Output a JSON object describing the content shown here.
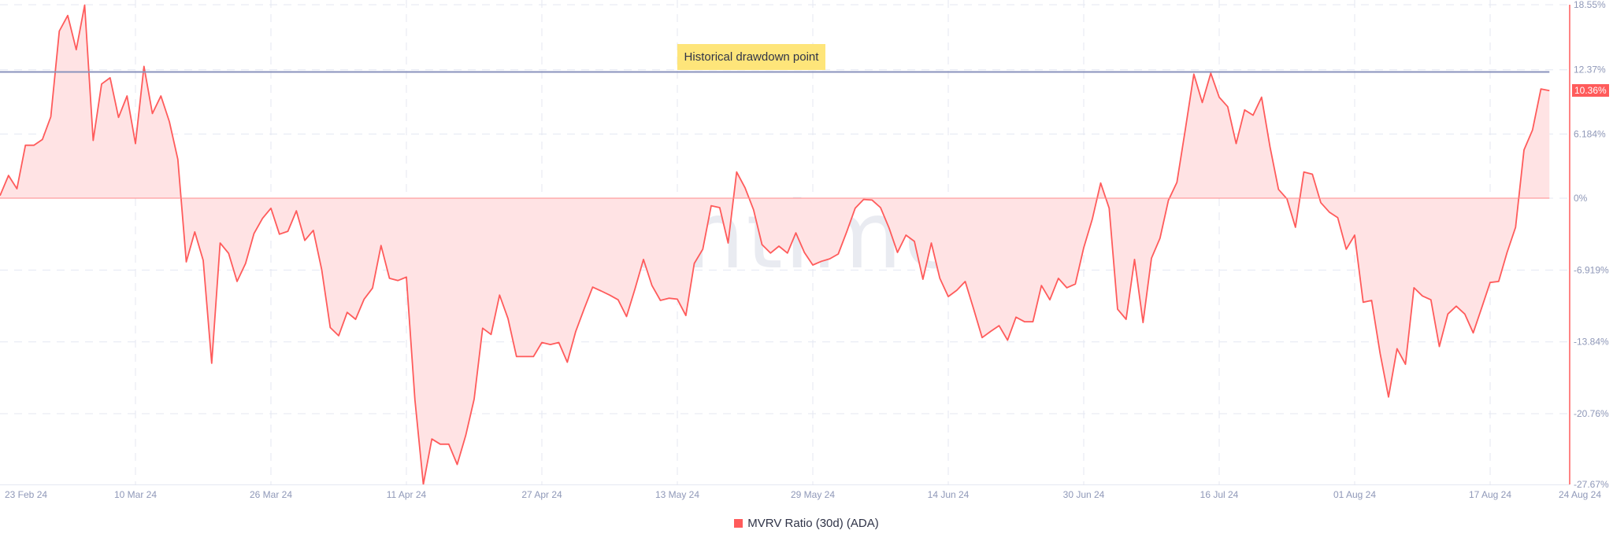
{
  "chart_data": {
    "type": "area",
    "title": "",
    "xlabel": "",
    "ylabel": "",
    "x_start": "2024-02-23",
    "x_end": "2024-08-24",
    "x_interval": "1 day",
    "x_tick_labels": [
      "23 Feb 24",
      "10 Mar 24",
      "26 Mar 24",
      "11 Apr 24",
      "27 Apr 24",
      "13 May 24",
      "29 May 24",
      "14 Jun 24",
      "30 Jun 24",
      "16 Jul 24",
      "01 Aug 24",
      "17 Aug 24",
      "24 Aug 24"
    ],
    "y_tick_labels": [
      "18.55%",
      "12.37%",
      "6.184%",
      "0%",
      "-6.919%",
      "-13.84%",
      "-20.76%",
      "-27.67%"
    ],
    "y_ticks": [
      18.55,
      12.37,
      6.184,
      0,
      -6.919,
      -13.84,
      -20.76,
      -27.67
    ],
    "ylim": [
      -27.67,
      18.55
    ],
    "y_axis_position": "right",
    "grid": true,
    "legend_position": "bottom-center",
    "series": [
      {
        "name": "MVRV Ratio (30d) (ADA)",
        "color": "#ff5b5b",
        "fill": "#ffe3e4",
        "values": [
          0.24,
          2.19,
          0.91,
          5.1,
          5.1,
          5.65,
          7.84,
          16.1,
          17.6,
          14.3,
          18.6,
          5.56,
          11.0,
          11.6,
          7.78,
          9.85,
          5.26,
          12.7,
          8.15,
          9.85,
          7.39,
          3.74,
          -6.14,
          -3.25,
          -5.99,
          -15.9,
          -4.32,
          -5.32,
          -8.02,
          -6.29,
          -3.4,
          -1.95,
          -0.97,
          -3.47,
          -3.19,
          -1.22,
          -4.07,
          -3.1,
          -6.9,
          -12.46,
          -13.25,
          -11.0,
          -11.67,
          -9.73,
          -8.66,
          -4.56,
          -7.72,
          -7.93,
          -7.6,
          -19.4,
          -27.57,
          -23.2,
          -23.7,
          -23.7,
          -25.65,
          -22.86,
          -19.36,
          -12.52,
          -13.13,
          -9.33,
          -11.6,
          -15.26,
          -15.26,
          -15.26,
          -13.9,
          -14.1,
          -13.9,
          -15.8,
          -12.83,
          -10.64,
          -8.57,
          -8.94,
          -9.33,
          -9.79,
          -11.4,
          -8.72,
          -5.9,
          -8.42,
          -9.85,
          -9.64,
          -9.73,
          -11.3,
          -6.29,
          -4.92,
          -0.73,
          -0.91,
          -4.32,
          2.52,
          1.0,
          -1.12,
          -4.47,
          -5.29,
          -4.62,
          -5.29,
          -3.34,
          -5.23,
          -6.44,
          -6.08,
          -5.84,
          -5.38,
          -3.25,
          -0.97,
          -0.12,
          -0.18,
          -0.91,
          -2.86,
          -5.23,
          -3.56,
          -4.16,
          -7.81,
          -4.32,
          -7.72,
          -9.48,
          -8.87,
          -8.02,
          -10.7,
          -13.43,
          -12.83,
          -12.28,
          -13.68,
          -11.46,
          -11.9,
          -11.9,
          -8.42,
          -9.79,
          -7.72,
          -8.63,
          -8.27,
          -4.77,
          -2.04,
          1.46,
          -0.97,
          -10.7,
          -11.67,
          -5.9,
          -11.98,
          -5.78,
          -3.86,
          -0.21,
          1.52,
          6.63,
          11.95,
          9.21,
          12.04,
          9.73,
          8.81,
          5.26,
          8.51,
          7.99,
          9.73,
          4.95,
          0.85,
          -0.06,
          -2.8,
          2.52,
          2.31,
          -0.43,
          -1.34,
          -1.88,
          -4.92,
          -3.56,
          -10.03,
          -9.85,
          -14.95,
          -19.15,
          -14.5,
          -16.0,
          -8.63,
          -9.42,
          -9.79,
          -14.29,
          -11.16,
          -10.4,
          -11.16,
          -12.98,
          -10.55,
          -8.12,
          -8.02,
          -5.23,
          -2.8,
          4.65,
          6.57,
          10.52,
          10.36
        ]
      }
    ],
    "last_value_label": "10.36%",
    "annotations": [
      {
        "type": "horizontal-line",
        "value": 12.16,
        "color": "#8a93bd",
        "label": "Historical drawdown point",
        "label_bg": "#fee57a"
      },
      {
        "type": "horizontal-line",
        "value": 0,
        "color": "#ff8a8a"
      }
    ],
    "watermark": "·santiment·"
  }
}
